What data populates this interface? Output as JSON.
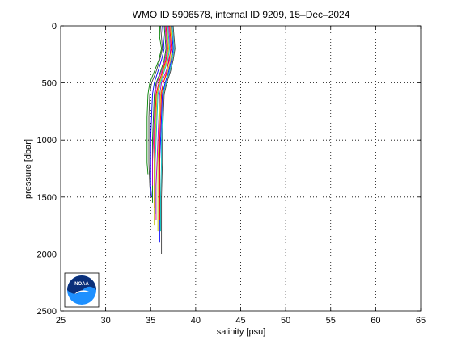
{
  "chart_data": {
    "type": "line",
    "title": "WMO ID 5906578, internal ID 9209, 15–Dec–2024",
    "xlabel": "salinity [psu]",
    "ylabel": "pressure [dbar]",
    "xlim": [
      25,
      65
    ],
    "ylim": [
      0,
      2500
    ],
    "y_reversed": true,
    "grid": true,
    "xticks": [
      25,
      30,
      35,
      40,
      45,
      50,
      55,
      60,
      65
    ],
    "yticks": [
      0,
      500,
      1000,
      1500,
      2000,
      2500
    ],
    "series": [
      {
        "color": "#0000ff",
        "points": [
          [
            36.3,
            0
          ],
          [
            36.4,
            100
          ],
          [
            36.5,
            200
          ],
          [
            36.2,
            300
          ],
          [
            35.8,
            400
          ],
          [
            35.4,
            500
          ],
          [
            35.2,
            600
          ],
          [
            35.1,
            800
          ],
          [
            35.0,
            1000
          ],
          [
            35.0,
            1200
          ],
          [
            35.0,
            1400
          ],
          [
            35.1,
            1500
          ]
        ]
      },
      {
        "color": "#008000",
        "points": [
          [
            36.5,
            0
          ],
          [
            36.6,
            100
          ],
          [
            36.7,
            200
          ],
          [
            36.5,
            300
          ],
          [
            36.1,
            400
          ],
          [
            35.6,
            500
          ],
          [
            35.4,
            600
          ],
          [
            35.3,
            800
          ],
          [
            35.2,
            1000
          ],
          [
            35.2,
            1200
          ],
          [
            35.2,
            1400
          ],
          [
            35.2,
            1550
          ]
        ]
      },
      {
        "color": "#ff0000",
        "points": [
          [
            36.7,
            0
          ],
          [
            36.8,
            100
          ],
          [
            36.9,
            200
          ],
          [
            36.7,
            300
          ],
          [
            36.3,
            400
          ],
          [
            35.9,
            500
          ],
          [
            35.6,
            600
          ],
          [
            35.5,
            800
          ],
          [
            35.4,
            1000
          ],
          [
            35.4,
            1200
          ],
          [
            35.4,
            1400
          ],
          [
            35.4,
            1600
          ]
        ]
      },
      {
        "color": "#00bfbf",
        "points": [
          [
            36.9,
            0
          ],
          [
            37.0,
            100
          ],
          [
            37.1,
            200
          ],
          [
            36.9,
            300
          ],
          [
            36.5,
            400
          ],
          [
            36.1,
            500
          ],
          [
            35.8,
            600
          ],
          [
            35.7,
            800
          ],
          [
            35.6,
            1000
          ],
          [
            35.5,
            1200
          ],
          [
            35.5,
            1400
          ],
          [
            35.5,
            1650
          ]
        ]
      },
      {
        "color": "#bf00bf",
        "points": [
          [
            37.0,
            0
          ],
          [
            37.1,
            100
          ],
          [
            37.2,
            200
          ],
          [
            37.1,
            300
          ],
          [
            36.7,
            400
          ],
          [
            36.2,
            500
          ],
          [
            36.0,
            600
          ],
          [
            35.9,
            800
          ],
          [
            35.8,
            1000
          ],
          [
            35.7,
            1200
          ],
          [
            35.6,
            1400
          ],
          [
            35.6,
            1700
          ]
        ]
      },
      {
        "color": "#bfbf00",
        "points": [
          [
            37.2,
            0
          ],
          [
            37.3,
            100
          ],
          [
            37.4,
            200
          ],
          [
            37.2,
            300
          ],
          [
            36.9,
            400
          ],
          [
            36.4,
            500
          ],
          [
            36.1,
            600
          ],
          [
            36.0,
            800
          ],
          [
            35.9,
            1000
          ],
          [
            35.8,
            1200
          ],
          [
            35.8,
            1500
          ],
          [
            35.8,
            1800
          ]
        ]
      },
      {
        "color": "#404040",
        "points": [
          [
            36.1,
            0
          ],
          [
            36.2,
            100
          ],
          [
            36.3,
            200
          ],
          [
            36.0,
            300
          ],
          [
            35.6,
            400
          ],
          [
            35.1,
            500
          ],
          [
            34.9,
            600
          ],
          [
            34.8,
            800
          ],
          [
            34.8,
            1000
          ],
          [
            34.8,
            1200
          ],
          [
            34.9,
            1400
          ],
          [
            35.0,
            1500
          ]
        ]
      },
      {
        "color": "#0000ff",
        "points": [
          [
            37.3,
            0
          ],
          [
            37.4,
            100
          ],
          [
            37.5,
            200
          ],
          [
            37.3,
            300
          ],
          [
            37.0,
            400
          ],
          [
            36.6,
            500
          ],
          [
            36.3,
            600
          ],
          [
            36.2,
            800
          ],
          [
            36.1,
            1000
          ],
          [
            36.0,
            1200
          ],
          [
            36.0,
            1500
          ],
          [
            36.0,
            1900
          ]
        ]
      },
      {
        "color": "#008000",
        "points": [
          [
            36.0,
            0
          ],
          [
            36.0,
            100
          ],
          [
            36.2,
            200
          ],
          [
            35.9,
            300
          ],
          [
            35.4,
            400
          ],
          [
            34.9,
            500
          ],
          [
            34.7,
            600
          ],
          [
            34.6,
            800
          ],
          [
            34.6,
            1000
          ],
          [
            34.6,
            1200
          ],
          [
            34.7,
            1300
          ]
        ]
      },
      {
        "color": "#ff0000",
        "points": [
          [
            37.1,
            0
          ],
          [
            37.2,
            100
          ],
          [
            37.3,
            200
          ],
          [
            37.0,
            300
          ],
          [
            36.8,
            400
          ],
          [
            36.4,
            500
          ],
          [
            36.2,
            600
          ],
          [
            36.1,
            800
          ],
          [
            36.0,
            1000
          ],
          [
            36.0,
            1200
          ],
          [
            36.0,
            1500
          ],
          [
            36.0,
            1700
          ]
        ]
      },
      {
        "color": "#00bfbf",
        "points": [
          [
            37.4,
            0
          ],
          [
            37.5,
            100
          ],
          [
            37.6,
            200
          ],
          [
            37.4,
            300
          ],
          [
            37.1,
            400
          ],
          [
            36.7,
            500
          ],
          [
            36.4,
            600
          ],
          [
            36.3,
            800
          ],
          [
            36.2,
            1000
          ],
          [
            36.2,
            1200
          ],
          [
            36.1,
            1500
          ],
          [
            36.1,
            1800
          ]
        ]
      },
      {
        "color": "#bf00bf",
        "points": [
          [
            36.6,
            0
          ],
          [
            36.7,
            100
          ],
          [
            36.8,
            200
          ],
          [
            36.6,
            300
          ],
          [
            36.2,
            400
          ],
          [
            35.7,
            500
          ],
          [
            35.5,
            600
          ],
          [
            35.4,
            800
          ],
          [
            35.3,
            1000
          ],
          [
            35.2,
            1200
          ],
          [
            35.2,
            1400
          ]
        ]
      },
      {
        "color": "#bfbf00",
        "points": [
          [
            36.8,
            0
          ],
          [
            36.9,
            100
          ],
          [
            37.0,
            200
          ],
          [
            36.8,
            300
          ],
          [
            36.4,
            400
          ],
          [
            36.0,
            500
          ],
          [
            35.7,
            600
          ],
          [
            35.6,
            800
          ],
          [
            35.5,
            1000
          ],
          [
            35.4,
            1200
          ],
          [
            35.4,
            1500
          ],
          [
            35.4,
            1750
          ]
        ]
      },
      {
        "color": "#404040",
        "points": [
          [
            37.5,
            0
          ],
          [
            37.6,
            100
          ],
          [
            37.7,
            200
          ],
          [
            37.5,
            300
          ],
          [
            37.2,
            400
          ],
          [
            36.8,
            500
          ],
          [
            36.5,
            600
          ],
          [
            36.4,
            800
          ],
          [
            36.3,
            1000
          ],
          [
            36.3,
            1200
          ],
          [
            36.2,
            1500
          ],
          [
            36.2,
            2000
          ]
        ]
      }
    ]
  },
  "logo": {
    "text": "NOAA"
  }
}
